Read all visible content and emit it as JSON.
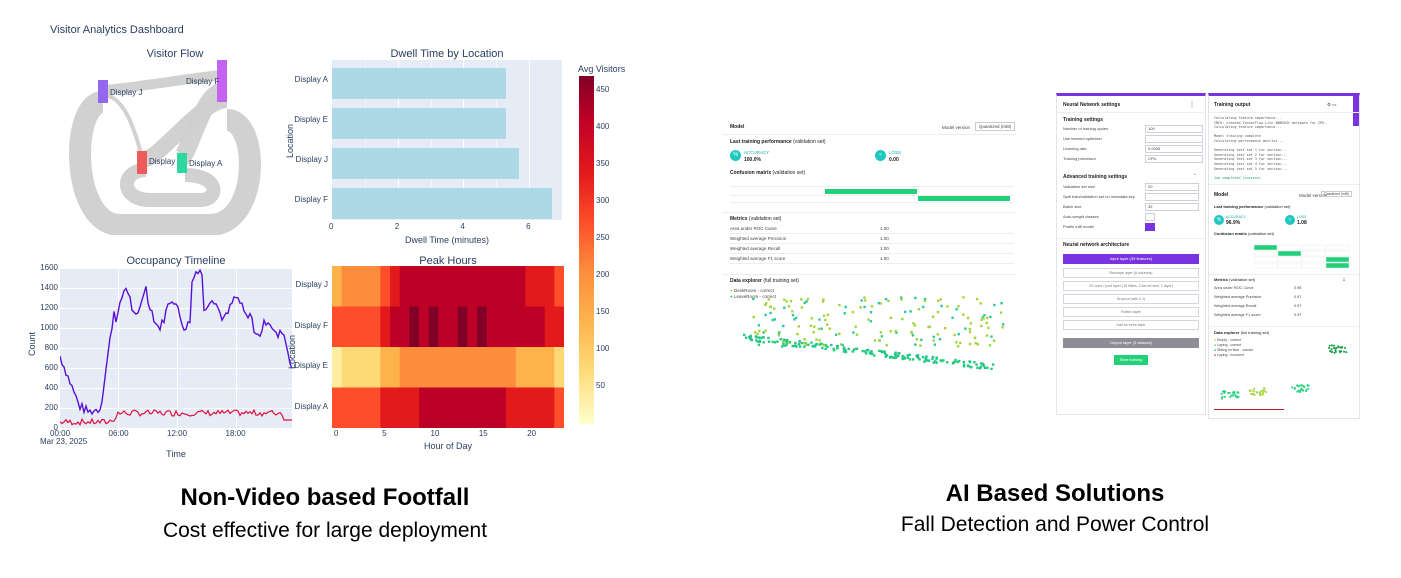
{
  "dashboard": {
    "title": "Visitor Analytics Dashboard",
    "sankey": {
      "title": "Visitor Flow",
      "nodes": [
        "Display J",
        "Display F",
        "Display E",
        "Display A"
      ],
      "colors": [
        "#9467f0",
        "#c463f0",
        "#ef5b5b",
        "#2fd6a0"
      ]
    },
    "dwell": {
      "title": "Dwell Time by Location",
      "xlabel": "Dwell Time (minutes)",
      "ylabel": "Location",
      "categories": [
        "Display A",
        "Display E",
        "Display J",
        "Display F"
      ],
      "values": [
        5.3,
        5.3,
        5.7,
        6.7
      ],
      "xticks": [
        "0",
        "2",
        "4",
        "6"
      ],
      "bar_color": "#add8e6"
    },
    "occupancy": {
      "title": "Occupancy Timeline",
      "xlabel": "Time",
      "ylabel": "Count",
      "yticks": [
        "0",
        "200",
        "400",
        "600",
        "800",
        "1000",
        "1200",
        "1400",
        "1600"
      ],
      "xticks": [
        "00:00",
        "06:00",
        "12:00",
        "18:00"
      ],
      "xsub": "Mar 23, 2025",
      "series_colors": [
        "#5a0fd6",
        "#e0103f"
      ]
    },
    "heatmap": {
      "title": "Peak Hours",
      "xlabel": "Hour of Day",
      "ylabel": "Location",
      "rows": [
        "Display J",
        "Display F",
        "Display E",
        "Display A"
      ],
      "xticks": [
        "0",
        "5",
        "10",
        "15",
        "20"
      ],
      "colorbar_title": "Avg Visitors",
      "colorbar_ticks": [
        "450",
        "400",
        "350",
        "300",
        "250",
        "200",
        "150",
        "100",
        "50"
      ]
    }
  },
  "captions": {
    "left_title": "Non-Video based Footfall",
    "left_sub": "Cost effective for large deployment",
    "right_title": "AI Based Solutions",
    "right_sub": "Fall Detection and Power Control"
  },
  "model_panel": {
    "header": "Model",
    "version_label": "Model version",
    "version_value": "Quantized (Int8)",
    "perf_title": "Last training performance",
    "perf_note": "(validation set)",
    "accuracy_label": "ACCURACY",
    "accuracy_value": "100.0%",
    "loss_label": "LOSS",
    "loss_value": "0.00",
    "confusion_title": "Confusion matrix",
    "confusion_note": "(validation set)",
    "metrics_title": "Metrics",
    "metrics_note": "(validation set)",
    "metrics": [
      {
        "name": "Area under ROC Curve",
        "value": "1.00"
      },
      {
        "name": "Weighted average Precision",
        "value": "1.00"
      },
      {
        "name": "Weighted average Recall",
        "value": "1.00"
      },
      {
        "name": "Weighted average F1 score",
        "value": "1.00"
      }
    ],
    "explorer_title": "Data explorer",
    "explorer_note": "(full training set)",
    "legend": [
      "DeskRoom - correct",
      "LeaveRoom - correct"
    ]
  },
  "nn_panel": {
    "header": "Neural Network settings",
    "training_settings": "Training settings",
    "fields": [
      {
        "label": "Number of training cycles",
        "value": "100"
      },
      {
        "label": "Use learned optimizer",
        "value": ""
      },
      {
        "label": "Learning rate",
        "value": "0.0005"
      },
      {
        "label": "Training processor",
        "value": "CPU"
      }
    ],
    "advanced": "Advanced training settings",
    "adv_fields": [
      {
        "label": "Validation set size",
        "value": "20"
      },
      {
        "label": "Split train/validation set on metadata key",
        "value": ""
      },
      {
        "label": "Batch size",
        "value": "32"
      },
      {
        "label": "Auto-weight classes",
        "value": ""
      },
      {
        "label": "Profile int8 model",
        "value": ""
      }
    ],
    "arch_title": "Neural network architecture",
    "input_layer": "Input layer (33 features)",
    "layers": [
      "Reshape layer (8 columns)",
      "2D conv / pool layer (16 filters, 3 kernel size, 1 layer)",
      "Dropout (rate 0.1)",
      "Flatten layer",
      "Add an extra layer"
    ],
    "output_layer": "Output layer (3 classes)",
    "start_button": "Start training"
  },
  "training_panel": {
    "header": "Training output",
    "log_lines": [
      "Calculating feature importance...",
      "INFO: created TensorFlow Lite XNNPACK delegate for CPU.",
      "Calculating feature importance...",
      "",
      "Model training complete",
      "Calculating performance metrics...",
      "",
      "Generating test set 1 for section...",
      "Generating test set 2 for section...",
      "Generating test set 3 for section...",
      "Generating test set 4 for section...",
      "Generating test set 5 for section...",
      "",
      "Job completed (success)"
    ],
    "model_header": "Model",
    "version_label": "Model version",
    "version_value": "Quantized (int8)",
    "perf_title": "Last training performance",
    "perf_note": "(validation set)",
    "accuracy_label": "ACCURACY",
    "accuracy_value": "96.9%",
    "loss_label": "LOSS",
    "loss_value": "1.08",
    "confusion_title": "Confusion matrix",
    "confusion_note": "(validation set)",
    "metrics_title": "Metrics",
    "metrics_note": "(validation set)",
    "metrics": [
      {
        "name": "Area under ROC Curve",
        "value": "0.98"
      },
      {
        "name": "Weighted average Precision",
        "value": "0.97"
      },
      {
        "name": "Weighted average Recall",
        "value": "0.97"
      },
      {
        "name": "Weighted average F1 score",
        "value": "0.97"
      }
    ],
    "explorer_title": "Data explorer",
    "explorer_note": "(full training set)",
    "legend": [
      "Empty - correct",
      "Laying - correct",
      "Sitting on floor - correct",
      "Laying - incorrect"
    ]
  },
  "colors": {
    "plot_bg": "#e5ecf6",
    "accent_purple": "#7a33e0",
    "accent_green": "#22d07a",
    "teal_icon": "#1ec8c0"
  }
}
